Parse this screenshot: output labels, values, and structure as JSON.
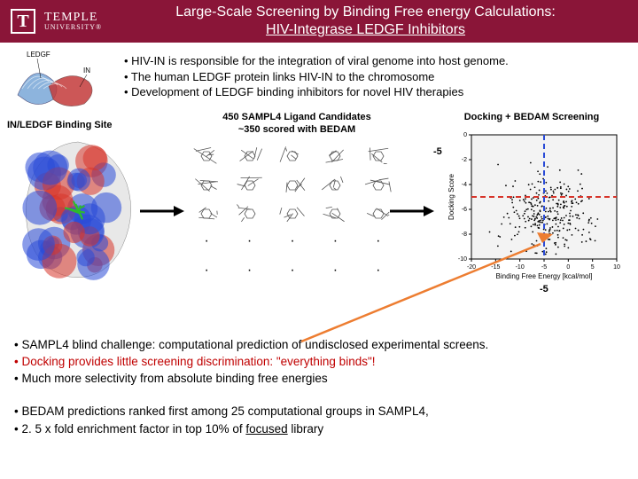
{
  "header": {
    "logo_letter": "T",
    "university_top": "TEMPLE",
    "university_bottom": "UNIVERSITY®",
    "title_line1": "Large-Scale Screening by Binding Free energy Calculations:",
    "title_line2": "HIV-Integrase LEDGF Inhibitors"
  },
  "top_bullets": {
    "b1": "• HIV-IN is responsible for the integration of viral genome into host genome.",
    "b2": "• The human LEDGF protein links HIV-IN to the chromosome",
    "b3": "• Development of LEDGF binding inhibitors for novel HIV therapies"
  },
  "cartoon": {
    "label_ledgf": "LEDGF",
    "label_in": "IN",
    "colors": {
      "ledgf": "#7aa8d8",
      "in": "#c43a3a",
      "bg": "#ffffff"
    }
  },
  "binding_label": "IN/LEDGF Binding Site",
  "binding_site": {
    "colors": {
      "pos": "#2a4bd7",
      "neg": "#d7342a",
      "neutral": "#e8e8e8",
      "ligand": "#2dbb2d"
    }
  },
  "ligand_block": {
    "title_line1": "450 SAMPL4 Ligand Candidates",
    "title_line2": "~350 scored with BEDAM",
    "grid_rows": 3,
    "grid_cols": 5,
    "dot_rows": 2,
    "mol_color": "#555555"
  },
  "scatter": {
    "title": "Docking + BEDAM Screening",
    "xlabel": "Binding Free Energy [kcal/mol]",
    "ylabel": "Docking Score",
    "xlim": [
      -20,
      10
    ],
    "xticks": [
      -20,
      -15,
      -10,
      -5,
      0,
      5,
      10
    ],
    "ylim": [
      -10,
      0
    ],
    "yticks": [
      -10,
      -8,
      -6,
      -4,
      -2,
      0
    ],
    "thresh_x": -5,
    "thresh_y": -5,
    "thresh_label_x": "-5",
    "thresh_label_y": "-5",
    "colors": {
      "axis": "#000000",
      "point": "#000000",
      "thresh_y": "#d7342a",
      "thresh_x": "#2a4bd7",
      "bg": "#f3f3f3"
    },
    "n_points": 300,
    "cloud_center": [
      -4,
      -6.5
    ],
    "cloud_spread": [
      4.5,
      1.6
    ]
  },
  "arrow_color": "#000000",
  "orange_arrow_color": "#ed7d31",
  "bottom_bullets": {
    "b1": "• SAMPL4 blind challenge: computational prediction of undisclosed experimental screens.",
    "b2": "• Docking provides little screening discrimination: \"everything binds\"!",
    "b3": "• Much more selectivity from absolute binding free energies"
  },
  "final_bullets": {
    "b1": "• BEDAM predictions ranked first among 25 computational groups in SAMPL4,",
    "b2_pre": "• 2. 5 x fold enrichment factor in top 10% of ",
    "b2_underline": "focused",
    "b2_post": " library"
  }
}
